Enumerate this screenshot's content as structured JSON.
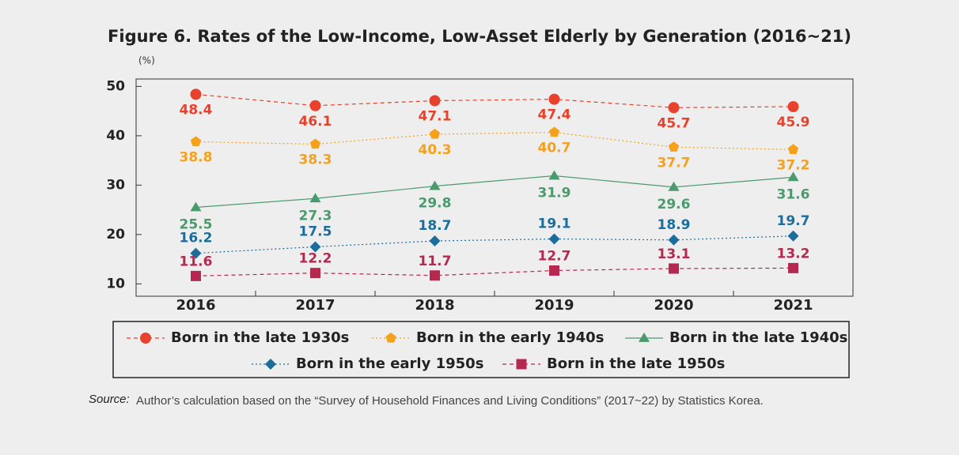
{
  "chart_data": {
    "type": "line",
    "title": "Figure 6. Rates of the Low-Income, Low-Asset Elderly by Generation (2016~21)",
    "unit_label": "(%)",
    "categories": [
      "2016",
      "2017",
      "2018",
      "2019",
      "2020",
      "2021"
    ],
    "series": [
      {
        "name": "Born in the late 1930s",
        "color": "#e8412c",
        "line_style": "dashed",
        "marker": "circle",
        "values": [
          48.4,
          46.1,
          47.1,
          47.4,
          45.7,
          45.9
        ]
      },
      {
        "name": "Born in the early 1940s",
        "color": "#f5a11c",
        "line_style": "dotted",
        "marker": "pentagon",
        "values": [
          38.8,
          38.3,
          40.3,
          40.7,
          37.7,
          37.2
        ]
      },
      {
        "name": "Born in the late 1940s",
        "color": "#4a9a6e",
        "line_style": "solid",
        "marker": "triangle",
        "values": [
          25.5,
          27.3,
          29.8,
          31.9,
          29.6,
          31.6
        ]
      },
      {
        "name": "Born in the early 1950s",
        "color": "#1b6e9b",
        "line_style": "dotted",
        "marker": "diamond",
        "values": [
          16.2,
          17.5,
          18.7,
          19.1,
          18.9,
          19.7
        ]
      },
      {
        "name": "Born in the late 1950s",
        "color": "#b5284f",
        "line_style": "dashed",
        "marker": "square",
        "values": [
          11.6,
          12.2,
          11.7,
          12.7,
          13.1,
          13.2
        ]
      }
    ],
    "ylim": [
      7.5,
      51.5
    ],
    "yticks": [
      10,
      20,
      30,
      40,
      50
    ],
    "grid": false,
    "legend": "bottom",
    "source_label": "Source:",
    "source_text": "Author’s calculation based on the “Survey of Household Finances and Living Conditions” (2017~22) by Statistics Korea."
  }
}
